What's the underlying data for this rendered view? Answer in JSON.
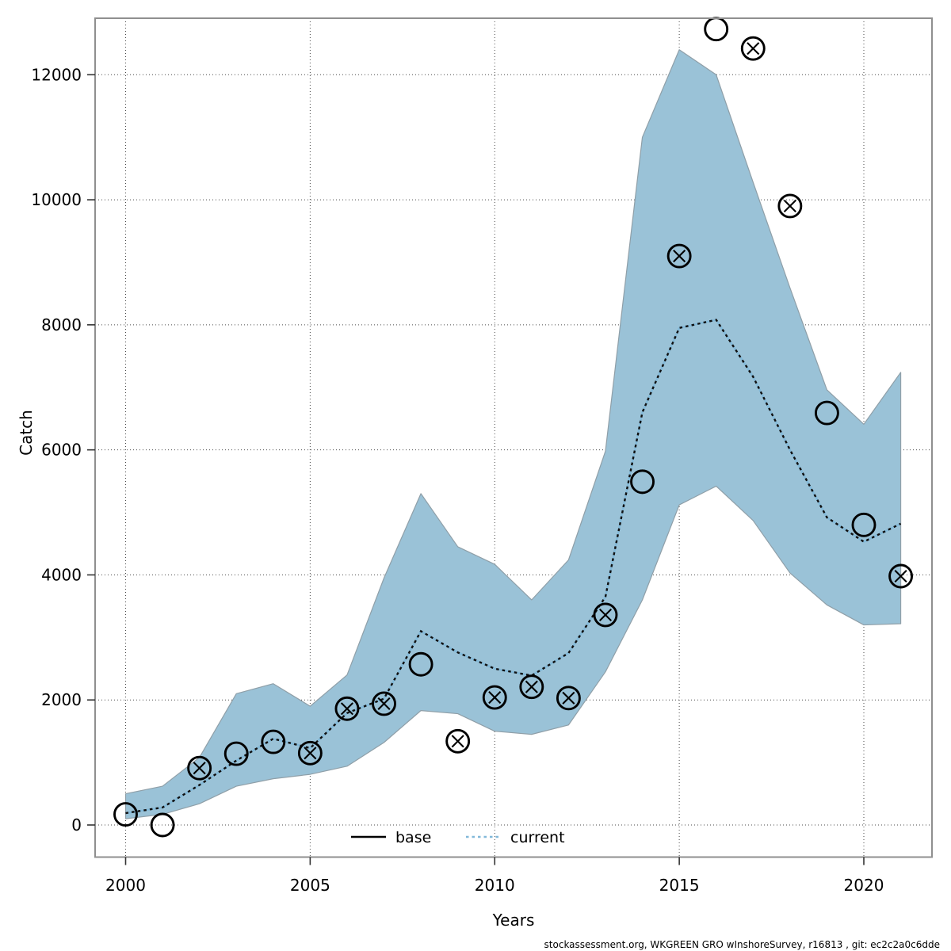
{
  "figure": {
    "footer": "stockassessment.org, WKGREEN GRO  wInshoreSurvey, r16813 , git: ec2c2a0c6dde"
  },
  "chart_data": {
    "type": "line",
    "title": "",
    "xlabel": "Years",
    "ylabel": "Catch",
    "grid": true,
    "legend_position": "bottom-inside",
    "xlim": [
      1999.2,
      2021.8
    ],
    "ylim": [
      -510,
      12900
    ],
    "x_ticks": [
      "2000",
      "2005",
      "2010",
      "2015",
      "2020"
    ],
    "x_tick_values": [
      2000,
      2005,
      2010,
      2015,
      2020
    ],
    "y_ticks": [
      "0",
      "2000",
      "4000",
      "6000",
      "8000",
      "10000",
      "12000"
    ],
    "y_tick_values": [
      0,
      2000,
      4000,
      6000,
      8000,
      10000,
      12000
    ],
    "years": [
      2000,
      2001,
      2002,
      2003,
      2004,
      2005,
      2006,
      2007,
      2008,
      2009,
      2010,
      2011,
      2012,
      2013,
      2014,
      2015,
      2016,
      2017,
      2018,
      2019,
      2020,
      2021
    ],
    "series": [
      {
        "name": "base",
        "type": "points",
        "marker": "open-circle",
        "values": [
          170,
          0,
          910,
          1140,
          1330,
          1150,
          1860,
          1940,
          2570,
          1340,
          2040,
          2210,
          2030,
          3360,
          5490,
          9100,
          12730,
          12420,
          9900,
          6590,
          4800,
          3980
        ],
        "crossed": [
          false,
          false,
          true,
          false,
          false,
          true,
          true,
          true,
          false,
          true,
          true,
          true,
          true,
          true,
          false,
          true,
          false,
          true,
          true,
          false,
          false,
          true
        ]
      },
      {
        "name": "current",
        "type": "line",
        "style": "dotted",
        "values": [
          190,
          280,
          640,
          1030,
          1380,
          1230,
          1790,
          2020,
          3100,
          2760,
          2500,
          2390,
          2750,
          3650,
          6600,
          7950,
          8080,
          7170,
          6000,
          4920,
          4530,
          4820
        ]
      },
      {
        "name": "current-confidence-band",
        "type": "band",
        "lower": [
          100,
          170,
          340,
          620,
          740,
          810,
          940,
          1320,
          1830,
          1780,
          1500,
          1450,
          1600,
          2450,
          3600,
          5120,
          5420,
          4870,
          4030,
          3520,
          3200,
          3220
        ],
        "upper": [
          500,
          620,
          1080,
          2100,
          2260,
          1900,
          2400,
          3950,
          5300,
          4450,
          4170,
          3600,
          4240,
          5980,
          11000,
          12400,
          12000,
          10280,
          8590,
          6960,
          6410,
          7240
        ]
      }
    ],
    "legend": [
      {
        "label": "base",
        "line": "solid-black"
      },
      {
        "label": "current",
        "line": "dotted-blue"
      }
    ]
  },
  "colors": {
    "band_fill": "#9AC2D7",
    "band_edge": "#8F9FA8",
    "current_blue": "#82B9D9",
    "current_dash": "#101010",
    "marker_stroke": "#000000",
    "grid": "#4a4a4a",
    "frame": "#8f8f8f",
    "tick": "#333333",
    "text": "#000000"
  }
}
